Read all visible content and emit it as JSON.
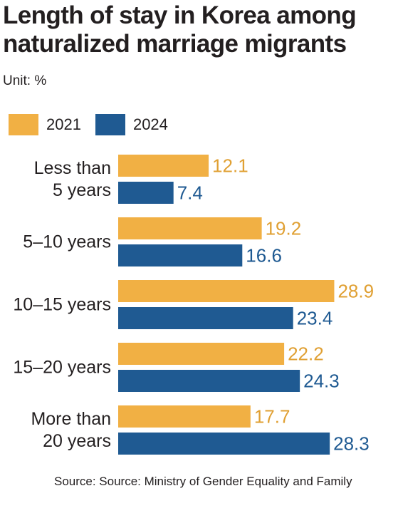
{
  "title_line1": "Length of stay in Korea among",
  "title_line2": "naturalized marriage migrants",
  "unit_label": "Unit: %",
  "source": "Source: Source: Ministry of Gender Equality and Family",
  "colors": {
    "series_2021": "#f1b044",
    "series_2024": "#1f5a92",
    "label_2021": "#e0a033",
    "label_2024": "#1f5a92",
    "text": "#231f20"
  },
  "chart_data": {
    "type": "bar",
    "orientation": "horizontal",
    "title": "Length of stay in Korea among naturalized marriage migrants",
    "unit": "Unit: %",
    "categories": [
      "Less than 5 years",
      "5–10 years",
      "10–15 years",
      "15–20 years",
      "More than 20 years"
    ],
    "category_label_lines": [
      [
        "Less than",
        "5 years"
      ],
      [
        "5–10 years"
      ],
      [
        "10–15 years"
      ],
      [
        "15–20 years"
      ],
      [
        "More than",
        "20 years"
      ]
    ],
    "series": [
      {
        "name": "2021",
        "values": [
          12.1,
          19.2,
          28.9,
          22.2,
          17.7
        ]
      },
      {
        "name": "2024",
        "values": [
          7.4,
          16.6,
          23.4,
          24.3,
          28.3
        ]
      }
    ],
    "value_labels": [
      [
        "12.1",
        "19.2",
        "28.9",
        "22.2",
        "17.7"
      ],
      [
        "7.4",
        "16.6",
        "23.4",
        "24.3",
        "28.3"
      ]
    ],
    "xlim": [
      0,
      30
    ],
    "grid": false,
    "legend_position": "top-left"
  }
}
